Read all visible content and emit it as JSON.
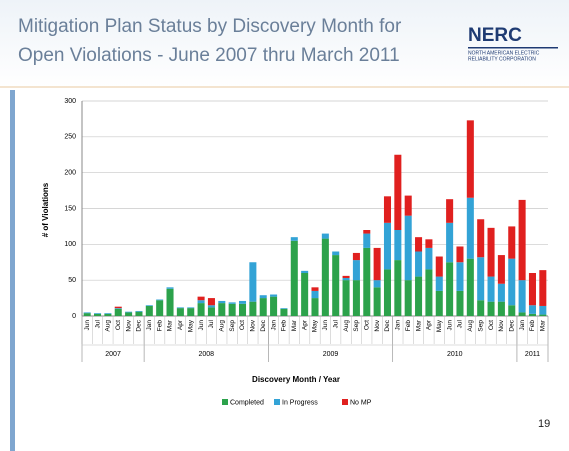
{
  "header": {
    "title": [
      "Mitigation Plan Status by Discovery Month for",
      "Open Violations - June 2007 thru March 2011"
    ],
    "logo": "NERC",
    "logo_subtitle": [
      "NORTH AMERICAN ELECTRIC",
      "RELIABILITY CORPORATION"
    ]
  },
  "page_number": "19",
  "chart_data": {
    "type": "stacked_bar",
    "ylabel": "# of Violations",
    "xlabel": "Discovery Month / Year",
    "ylim": [
      0,
      300
    ],
    "yticks": [
      0,
      50,
      100,
      150,
      200,
      250,
      300
    ],
    "grid": true,
    "years": [
      {
        "label": "2007",
        "months": [
          "Jun",
          "Jul",
          "Aug",
          "Oct",
          "Nov",
          "Dec"
        ]
      },
      {
        "label": "2008",
        "months": [
          "Jan",
          "Feb",
          "Mar",
          "Apr",
          "May",
          "Jun",
          "Jul",
          "Aug",
          "Sep",
          "Oct",
          "Nov",
          "Dec"
        ]
      },
      {
        "label": "2009",
        "months": [
          "Jan",
          "Feb",
          "Mar",
          "Apr",
          "May",
          "Jun",
          "Jul",
          "Aug",
          "Sep",
          "Oct",
          "Nov",
          "Dec"
        ]
      },
      {
        "label": "2010",
        "months": [
          "Jan",
          "Feb",
          "Mar",
          "Apr",
          "May",
          "Jun",
          "Jul",
          "Aug",
          "Sep",
          "Oct",
          "Nov",
          "Dec"
        ]
      },
      {
        "label": "2011",
        "months": [
          "Jan",
          "Feb",
          "Mar"
        ]
      }
    ],
    "series": [
      {
        "name": "Completed",
        "color": "#2ca24b",
        "values": [
          4,
          3,
          3,
          10,
          5,
          6,
          14,
          22,
          38,
          11,
          11,
          18,
          12,
          18,
          17,
          17,
          20,
          25,
          27,
          10,
          105,
          60,
          25,
          108,
          85,
          50,
          50,
          95,
          40,
          65,
          78,
          50,
          55,
          65,
          35,
          75,
          35,
          80,
          22,
          20,
          20,
          15,
          5,
          3,
          2
        ]
      },
      {
        "name": "In Progress",
        "color": "#33a3d6",
        "values": [
          1,
          1,
          1,
          1,
          1,
          1,
          1,
          1,
          2,
          1,
          1,
          4,
          3,
          3,
          2,
          4,
          55,
          4,
          3,
          1,
          5,
          3,
          10,
          7,
          5,
          3,
          28,
          20,
          10,
          65,
          42,
          90,
          35,
          30,
          20,
          55,
          40,
          85,
          60,
          35,
          25,
          65,
          45,
          12,
          12
        ]
      },
      {
        "name": "No MP",
        "color": "#e0201f",
        "values": [
          0,
          0,
          0,
          2,
          0,
          0,
          0,
          0,
          0,
          0,
          0,
          5,
          10,
          0,
          0,
          0,
          0,
          0,
          0,
          0,
          0,
          0,
          5,
          0,
          0,
          3,
          10,
          5,
          45,
          37,
          105,
          28,
          20,
          12,
          28,
          33,
          22,
          108,
          53,
          68,
          40,
          45,
          112,
          45,
          50
        ]
      }
    ]
  }
}
